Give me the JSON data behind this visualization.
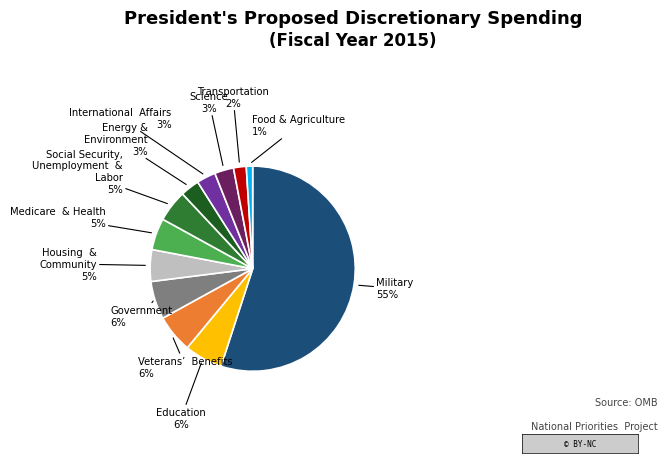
{
  "title_line1": "President's Proposed Discretionary Spending",
  "title_line2": "(Fiscal Year 2015)",
  "wedges": [
    {
      "label": "Military\n55%",
      "value": 55,
      "color": "#1C4E7A"
    },
    {
      "label": "Education\n6%",
      "value": 6,
      "color": "#FFC000"
    },
    {
      "label": "Veterans’  Benefits\n6%",
      "value": 6,
      "color": "#ED7D31"
    },
    {
      "label": "Government\n6%",
      "value": 6,
      "color": "#7F7F7F"
    },
    {
      "label": "Housing  &\nCommunity\n5%",
      "value": 5,
      "color": "#BFBFBF"
    },
    {
      "label": "Medicare  & Health\n5%",
      "value": 5,
      "color": "#4CAF50"
    },
    {
      "label": "Social Security,\nUnemployment  &\nLabor\n5%",
      "value": 5,
      "color": "#2E7D32"
    },
    {
      "label": "Energy &\nEnvironment\n3%",
      "value": 3,
      "color": "#1B5E20"
    },
    {
      "label": "International  Affairs\n3%",
      "value": 3,
      "color": "#7030A0"
    },
    {
      "label": "Science\n3%",
      "value": 3,
      "color": "#6B1F5E"
    },
    {
      "label": "Transportation\n2%",
      "value": 2,
      "color": "#C00000"
    },
    {
      "label": "Food & Agriculture\n1%",
      "value": 1,
      "color": "#00B0F0"
    }
  ],
  "source_line1": "Source: OMB",
  "source_line2": "National Priorities  Project",
  "background_color": "#FFFFFF",
  "startangle": 90
}
